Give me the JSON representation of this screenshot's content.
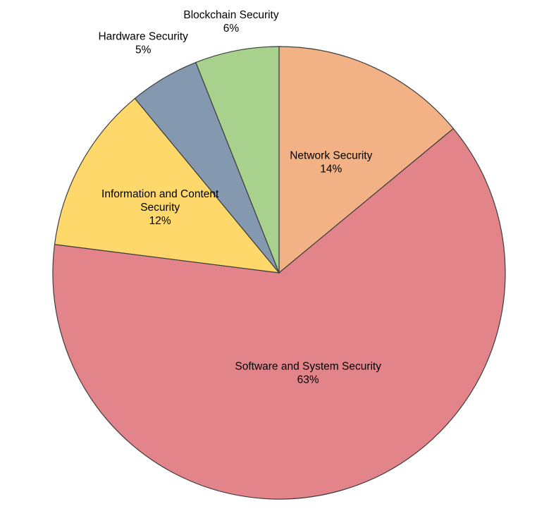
{
  "chart_data": {
    "type": "pie",
    "title": "",
    "start_angle_deg": 90,
    "direction": "clockwise",
    "slices": [
      {
        "label": "Network Security",
        "value": 14,
        "percent_text": "14%",
        "color": "#f3b286"
      },
      {
        "label": "Software and System Security",
        "value": 63,
        "percent_text": "63%",
        "color": "#e3848a"
      },
      {
        "label": "Information and Content Security",
        "value": 12,
        "percent_text": "12%",
        "color": "#fed86a"
      },
      {
        "label": "Hardware Security",
        "value": 5,
        "percent_text": "5%",
        "color": "#8498b0"
      },
      {
        "label": "Blockchain Security",
        "value": 6,
        "percent_text": "6%",
        "color": "#a9d18e"
      }
    ]
  }
}
